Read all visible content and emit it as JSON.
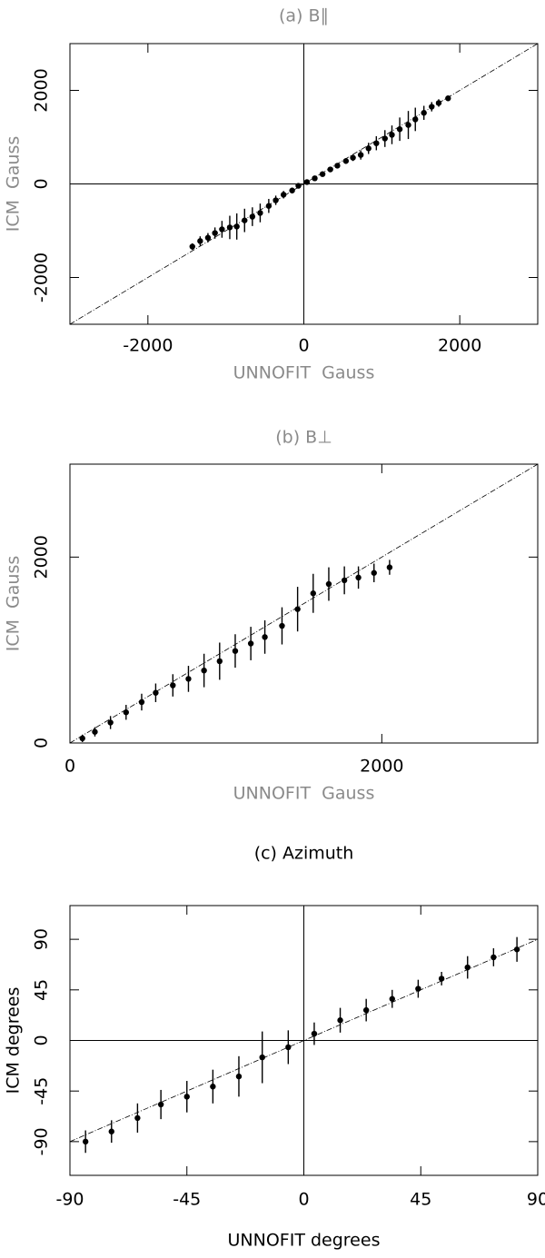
{
  "chart_data": [
    {
      "type": "scatter",
      "title": "(a) B∥",
      "x_label": "UNNOFIT  Gauss",
      "y_label": "ICM  Gauss",
      "label_color": "#8a8a8a",
      "xlim": [
        -3000,
        3000
      ],
      "ylim": [
        -3000,
        3000
      ],
      "xticks": [
        -2000,
        0,
        2000
      ],
      "yticks": [
        -2000,
        0,
        2000
      ],
      "zero_lines": true,
      "diagonal": true,
      "x": [
        -1430,
        -1330,
        -1230,
        -1140,
        -1050,
        -950,
        -860,
        -760,
        -660,
        -560,
        -450,
        -360,
        -260,
        -150,
        -70,
        40,
        140,
        240,
        340,
        430,
        540,
        630,
        730,
        830,
        930,
        1040,
        1130,
        1230,
        1340,
        1430,
        1540,
        1640,
        1730,
        1850
      ],
      "series": [
        {
          "color": "#000000",
          "values": [
            -1340,
            -1220,
            -1150,
            -1050,
            -970,
            -930,
            -910,
            -780,
            -700,
            -620,
            -470,
            -350,
            -230,
            -140,
            -40,
            40,
            120,
            210,
            310,
            390,
            490,
            560,
            620,
            760,
            870,
            970,
            1050,
            1170,
            1260,
            1380,
            1520,
            1650,
            1730,
            1830
          ],
          "errors": [
            70,
            100,
            100,
            120,
            180,
            250,
            280,
            250,
            200,
            200,
            150,
            100,
            80,
            60,
            40,
            20,
            20,
            30,
            40,
            50,
            60,
            70,
            100,
            120,
            150,
            180,
            200,
            250,
            300,
            250,
            150,
            100,
            80,
            30
          ]
        }
      ]
    },
    {
      "type": "scatter",
      "title": "(b) B⊥",
      "x_label": "UNNOFIT  Gauss",
      "y_label": "ICM  Gauss",
      "label_color": "#8a8a8a",
      "xlim": [
        0,
        3000
      ],
      "ylim": [
        0,
        3000
      ],
      "xticks": [
        0,
        2000
      ],
      "yticks": [
        0,
        2000
      ],
      "zero_lines": false,
      "diagonal": true,
      "x": [
        80,
        160,
        260,
        360,
        460,
        550,
        660,
        760,
        860,
        960,
        1060,
        1160,
        1250,
        1360,
        1460,
        1560,
        1660,
        1760,
        1850,
        1950,
        2050
      ],
      "series": [
        {
          "color": "#000000",
          "values": [
            50,
            120,
            220,
            330,
            440,
            540,
            620,
            690,
            780,
            880,
            990,
            1070,
            1140,
            1260,
            1440,
            1610,
            1710,
            1750,
            1780,
            1830,
            1890
          ],
          "errors": [
            40,
            50,
            70,
            80,
            90,
            100,
            120,
            140,
            180,
            200,
            180,
            180,
            180,
            200,
            240,
            210,
            180,
            150,
            120,
            100,
            80
          ]
        }
      ]
    },
    {
      "type": "scatter",
      "title": "(c) Azimuth",
      "x_label": "UNNOFIT degrees",
      "y_label": "ICM degrees",
      "label_color": "#000000",
      "xlim": [
        -90,
        90
      ],
      "ylim": [
        -120,
        120
      ],
      "xticks": [
        -90,
        -45,
        0,
        45,
        90
      ],
      "yticks": [
        -90,
        -45,
        0,
        45,
        90
      ],
      "zero_lines": true,
      "diagonal": true,
      "x": [
        -84,
        -74,
        -64,
        -55,
        -45,
        -35,
        -25,
        -16,
        -6,
        4,
        14,
        24,
        34,
        44,
        53,
        63,
        73,
        82
      ],
      "series": [
        {
          "color": "#000000",
          "values": [
            -90,
            -81,
            -69,
            -57,
            -50,
            -41,
            -32,
            -15,
            -6,
            6,
            18,
            27,
            37,
            46,
            55,
            65,
            74,
            81
          ],
          "errors": [
            10,
            10,
            13,
            13,
            14,
            15,
            18,
            23,
            15,
            10,
            11,
            10,
            8,
            8,
            6,
            10,
            8,
            11
          ]
        }
      ]
    }
  ]
}
